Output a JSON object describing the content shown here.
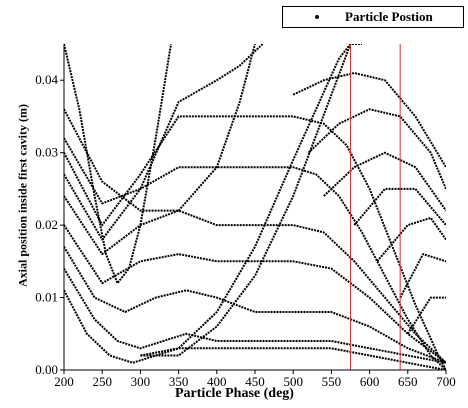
{
  "chart_data": {
    "type": "line",
    "title": "",
    "xlabel": "Particle Phase (deg)",
    "ylabel": "Axial position inside first cavity (m)",
    "xlim": [
      200,
      700
    ],
    "ylim": [
      0.0,
      0.045
    ],
    "xticks": [
      "200",
      "250",
      "300",
      "350",
      "400",
      "450",
      "500",
      "550",
      "600",
      "650",
      "700"
    ],
    "yticks": [
      "0.00",
      "0.01",
      "0.02",
      "0.03",
      "0.04"
    ],
    "legend": {
      "label": "Particle Postion",
      "placement": "top-right"
    },
    "grid": false,
    "vertical_lines": [
      575,
      640
    ],
    "vertical_line_color": "#e03030",
    "series": [
      {
        "x": [
          200,
          220,
          240,
          255,
          270,
          285,
          300,
          320,
          340
        ],
        "y": [
          0.045,
          0.036,
          0.024,
          0.016,
          0.012,
          0.014,
          0.02,
          0.032,
          0.045
        ]
      },
      {
        "x": [
          200,
          250,
          300,
          350,
          400,
          430,
          450
        ],
        "y": [
          0.036,
          0.026,
          0.022,
          0.022,
          0.028,
          0.037,
          0.045
        ]
      },
      {
        "x": [
          200,
          250,
          300,
          350,
          400,
          430,
          460
        ],
        "y": [
          0.032,
          0.023,
          0.025,
          0.037,
          0.04,
          0.042,
          0.045
        ]
      },
      {
        "x": [
          200,
          250,
          300,
          350,
          400,
          450,
          500,
          540,
          570,
          600,
          630,
          660,
          690,
          700
        ],
        "y": [
          0.03,
          0.02,
          0.027,
          0.035,
          0.035,
          0.035,
          0.035,
          0.034,
          0.031,
          0.025,
          0.017,
          0.009,
          0.002,
          0.0
        ]
      },
      {
        "x": [
          200,
          250,
          300,
          350,
          400,
          450,
          500,
          530,
          560,
          590,
          620,
          650,
          680,
          700
        ],
        "y": [
          0.027,
          0.018,
          0.025,
          0.028,
          0.028,
          0.028,
          0.028,
          0.027,
          0.024,
          0.019,
          0.013,
          0.007,
          0.002,
          0.0
        ]
      },
      {
        "x": [
          200,
          250,
          300,
          350,
          400,
          450,
          500,
          540,
          580,
          620,
          660,
          700
        ],
        "y": [
          0.024,
          0.016,
          0.02,
          0.022,
          0.02,
          0.02,
          0.02,
          0.019,
          0.015,
          0.01,
          0.005,
          0.001
        ]
      },
      {
        "x": [
          200,
          250,
          300,
          350,
          400,
          450,
          500,
          550,
          600,
          650,
          700
        ],
        "y": [
          0.02,
          0.012,
          0.015,
          0.016,
          0.015,
          0.015,
          0.015,
          0.014,
          0.01,
          0.005,
          0.001
        ]
      },
      {
        "x": [
          200,
          240,
          280,
          320,
          360,
          400,
          450,
          500,
          550,
          600,
          650,
          700
        ],
        "y": [
          0.017,
          0.01,
          0.008,
          0.01,
          0.011,
          0.01,
          0.008,
          0.008,
          0.008,
          0.006,
          0.003,
          0.001
        ]
      },
      {
        "x": [
          200,
          240,
          270,
          300,
          330,
          360,
          400,
          450,
          500,
          550,
          600,
          650,
          700
        ],
        "y": [
          0.014,
          0.007,
          0.004,
          0.003,
          0.004,
          0.005,
          0.004,
          0.004,
          0.004,
          0.004,
          0.003,
          0.002,
          0.001
        ]
      },
      {
        "x": [
          200,
          230,
          260,
          290,
          320,
          350,
          400,
          450,
          500,
          550,
          600,
          650,
          700
        ],
        "y": [
          0.011,
          0.005,
          0.002,
          0.001,
          0.002,
          0.003,
          0.003,
          0.003,
          0.003,
          0.003,
          0.002,
          0.001,
          0.0
        ]
      },
      {
        "x": [
          300,
          350,
          400,
          450,
          500,
          530,
          560,
          575
        ],
        "y": [
          0.002,
          0.003,
          0.008,
          0.017,
          0.029,
          0.036,
          0.043,
          0.045
        ]
      },
      {
        "x": [
          300,
          350,
          400,
          450,
          500,
          550,
          575,
          590
        ],
        "y": [
          0.002,
          0.002,
          0.006,
          0.013,
          0.024,
          0.038,
          0.045,
          0.045
        ]
      },
      {
        "x": [
          500,
          540,
          580,
          620,
          660,
          700
        ],
        "y": [
          0.038,
          0.04,
          0.041,
          0.04,
          0.035,
          0.028
        ]
      },
      {
        "x": [
          520,
          560,
          600,
          640,
          680,
          700
        ],
        "y": [
          0.03,
          0.034,
          0.036,
          0.035,
          0.03,
          0.025
        ]
      },
      {
        "x": [
          540,
          580,
          620,
          660,
          700
        ],
        "y": [
          0.024,
          0.028,
          0.03,
          0.028,
          0.022
        ]
      },
      {
        "x": [
          580,
          620,
          660,
          700
        ],
        "y": [
          0.02,
          0.025,
          0.025,
          0.02
        ]
      },
      {
        "x": [
          610,
          650,
          680,
          700
        ],
        "y": [
          0.015,
          0.02,
          0.021,
          0.018
        ]
      },
      {
        "x": [
          640,
          670,
          700
        ],
        "y": [
          0.01,
          0.016,
          0.015
        ]
      },
      {
        "x": [
          650,
          680,
          700
        ],
        "y": [
          0.005,
          0.01,
          0.01
        ]
      }
    ]
  }
}
